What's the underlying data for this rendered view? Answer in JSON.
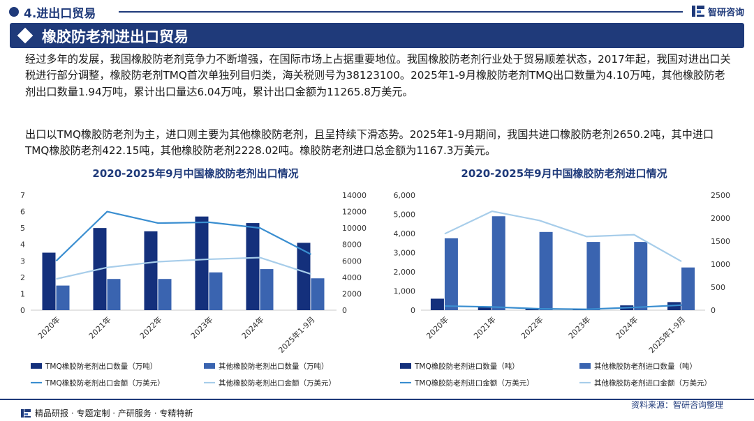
{
  "header": {
    "section_title": "4.进出口贸易",
    "brand": "智研咨询"
  },
  "banner": {
    "title": "橡胶防老剂进出口贸易"
  },
  "body": {
    "para1": "经过多年的发展，我国橡胶防老剂竞争力不断增强，在国际市场上占据重要地位。我国橡胶防老剂行业处于贸易顺差状态，2017年起，我国对进出口关税进行部分调整，橡胶防老剂TMQ首次单独列目归类，海关税则号为38123100。2025年1-9月橡胶防老剂TMQ出口数量为4.10万吨，其他橡胶防老剂出口数量1.94万吨，累计出口量达6.04万吨，累计出口金额为11265.8万美元。",
    "para2": "出口以TMQ橡胶防老剂为主，进口则主要为其他橡胶防老剂，且呈持续下滑态势。2025年1-9月期间，我国共进口橡胶防老剂2650.2吨，其中进口TMQ橡胶防老剂422.15吨，其他橡胶防老剂2228.02吨。橡胶防老剂进口总金额为1167.3万美元。"
  },
  "colors": {
    "navy": "#1f3a7a",
    "bar_dark": "#14307c",
    "bar_mid": "#3a64b0",
    "line_mid": "#3a8ed0",
    "line_light": "#a7cdea"
  },
  "chart_data": [
    {
      "type": "bar",
      "title": "2020-2025年9月中国橡胶防老剂出口情况",
      "categories": [
        "2020年",
        "2021年",
        "2022年",
        "2023年",
        "2024年",
        "2025年1-9月"
      ],
      "ylim_left": [
        0,
        7
      ],
      "yticks_left": [
        "0",
        "1",
        "2",
        "3",
        "4",
        "5",
        "6",
        "7"
      ],
      "ylim_right": [
        0,
        14000
      ],
      "yticks_right": [
        "0",
        "2000",
        "4000",
        "6000",
        "8000",
        "10000",
        "12000",
        "14000"
      ],
      "series": [
        {
          "name": "TMQ橡胶防老剂出口数量（万吨）",
          "kind": "bar",
          "axis": "left",
          "color": "#14307c",
          "values": [
            3.5,
            5.0,
            4.8,
            5.7,
            5.3,
            4.1
          ]
        },
        {
          "name": "其他橡胶防老剂出口数量（万吨）",
          "kind": "bar",
          "axis": "left",
          "color": "#3a64b0",
          "values": [
            1.5,
            1.9,
            1.9,
            2.3,
            2.5,
            1.94
          ]
        },
        {
          "name": "TMQ橡胶防老剂出口金额（万美元）",
          "kind": "line",
          "axis": "right",
          "color": "#3a8ed0",
          "values": [
            6000,
            12000,
            10600,
            10700,
            10000,
            6800
          ]
        },
        {
          "name": "其他橡胶防老剂出口金额（万美元）",
          "kind": "line",
          "axis": "right",
          "color": "#a7cdea",
          "values": [
            3800,
            5200,
            5900,
            6200,
            6400,
            4400
          ]
        }
      ]
    },
    {
      "type": "bar",
      "title": "2020-2025年9月中国橡胶防老剂进口情况",
      "categories": [
        "2020年",
        "2021年",
        "2022年",
        "2023年",
        "2024年",
        "2025年1-9月"
      ],
      "ylim_left": [
        0,
        6000
      ],
      "yticks_left": [
        "0",
        "1,000",
        "2,000",
        "3,000",
        "4,000",
        "5,000",
        "6,000"
      ],
      "ylim_right": [
        0,
        2500
      ],
      "yticks_right": [
        "0",
        "500",
        "1000",
        "1500",
        "2000",
        "2500"
      ],
      "series": [
        {
          "name": "TMQ橡胶防老剂进口数量（吨）",
          "kind": "bar",
          "axis": "left",
          "color": "#14307c",
          "values": [
            600,
            200,
            80,
            50,
            250,
            422.15
          ]
        },
        {
          "name": "其他橡胶防老剂进口数量（吨）",
          "kind": "bar",
          "axis": "left",
          "color": "#3a64b0",
          "values": [
            3750,
            4900,
            4080,
            3560,
            3560,
            2228.02
          ]
        },
        {
          "name": "TMQ橡胶防老剂进口金额（万美元）",
          "kind": "line",
          "axis": "right",
          "color": "#3a8ed0",
          "values": [
            90,
            70,
            30,
            20,
            60,
            110
          ]
        },
        {
          "name": "其他橡胶防老剂进口金额（万美元）",
          "kind": "line",
          "axis": "right",
          "color": "#a7cdea",
          "values": [
            1660,
            2150,
            1950,
            1600,
            1640,
            1060
          ]
        }
      ]
    }
  ],
  "footer": {
    "tagline": "精品研报 · 专题定制 · 产研服务 · 专精特新",
    "source": "资料来源：智研咨询整理"
  }
}
